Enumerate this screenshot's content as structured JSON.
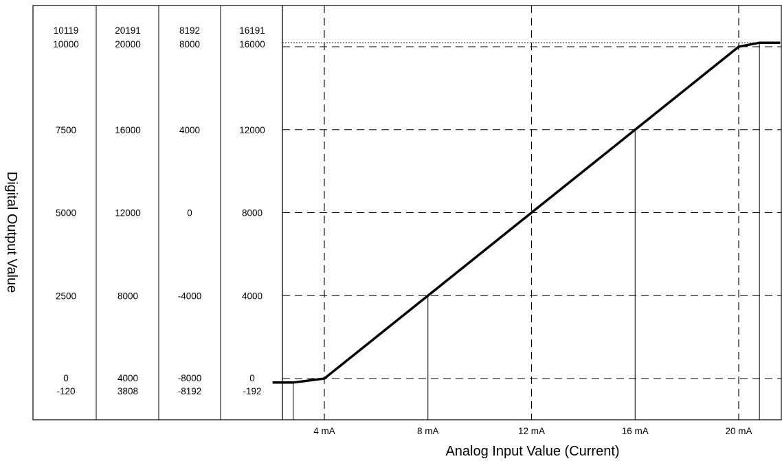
{
  "chart_data": {
    "type": "line",
    "title": "",
    "xlabel": "Analog Input Value (Current)",
    "ylabel": "Digital Output Value",
    "x_unit": "mA",
    "xlim": [
      2.0,
      21.6
    ],
    "ylim": [
      -600,
      17000
    ],
    "grid": "dashed",
    "x_ticks": [
      4,
      8,
      12,
      16,
      20
    ],
    "x_tick_labels": [
      "4 mA",
      "8 mA",
      "12 mA",
      "16 mA",
      "20 mA"
    ],
    "series": [
      {
        "x": [
          2.0,
          2.8,
          4.0,
          8.0,
          12.0,
          16.0,
          20.0,
          20.8,
          21.6
        ],
        "y": [
          -192,
          -192,
          0,
          4000,
          8000,
          12000,
          16000,
          16191,
          16191
        ]
      }
    ],
    "drop_lines_x": [
      2.8,
      8.0,
      16.0,
      20.8
    ],
    "dotted_reference_y": 16191,
    "scale_columns": [
      {
        "labels": [
          {
            "text": "10119",
            "y": 16191
          },
          {
            "text": "10000",
            "y": 16000
          },
          {
            "text": "7500",
            "y": 12000
          },
          {
            "text": "5000",
            "y": 8000
          },
          {
            "text": "2500",
            "y": 4000
          },
          {
            "text": "0",
            "y": 0
          },
          {
            "text": "-120",
            "y": -192
          }
        ]
      },
      {
        "labels": [
          {
            "text": "20191",
            "y": 16191
          },
          {
            "text": "20000",
            "y": 16000
          },
          {
            "text": "16000",
            "y": 12000
          },
          {
            "text": "12000",
            "y": 8000
          },
          {
            "text": "8000",
            "y": 4000
          },
          {
            "text": "4000",
            "y": 0
          },
          {
            "text": "3808",
            "y": -192
          }
        ]
      },
      {
        "labels": [
          {
            "text": "8192",
            "y": 16191
          },
          {
            "text": "8000",
            "y": 16000
          },
          {
            "text": "4000",
            "y": 12000
          },
          {
            "text": "0",
            "y": 8000
          },
          {
            "text": "-4000",
            "y": 4000
          },
          {
            "text": "-8000",
            "y": 0
          },
          {
            "text": "-8192",
            "y": -192
          }
        ]
      },
      {
        "labels": [
          {
            "text": "16191",
            "y": 16191
          },
          {
            "text": "16000",
            "y": 16000
          },
          {
            "text": "12000",
            "y": 12000
          },
          {
            "text": "8000",
            "y": 8000
          },
          {
            "text": "4000",
            "y": 4000
          },
          {
            "text": "0",
            "y": 0
          },
          {
            "text": "-192",
            "y": -192
          }
        ]
      }
    ]
  }
}
